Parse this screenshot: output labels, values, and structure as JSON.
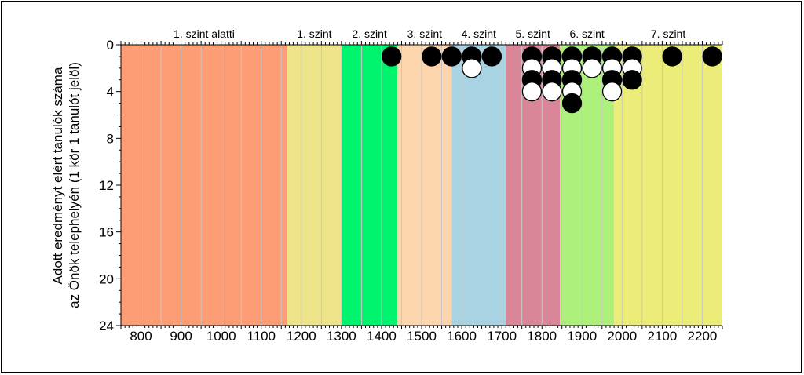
{
  "chart_data": {
    "type": "scatter",
    "ylabel_lines": [
      "Adott eredményt elért tanulók száma",
      "az Önök telephelyén (1 kör 1 tanulót jelöl)"
    ],
    "xlim": [
      750,
      2250
    ],
    "ylim": [
      0,
      24
    ],
    "y_inverted": true,
    "x_ticks": [
      800,
      900,
      1000,
      1100,
      1200,
      1300,
      1400,
      1500,
      1600,
      1700,
      1800,
      1900,
      2000,
      2100,
      2200
    ],
    "y_ticks": [
      0,
      4,
      8,
      12,
      16,
      20,
      24
    ],
    "vertical_gridlines_every": 50,
    "bands": [
      {
        "label": "1. szint alatti",
        "from": 750,
        "to": 1165,
        "color": "#fc9d76"
      },
      {
        "label": "1. szint",
        "from": 1165,
        "to": 1300,
        "color": "#ede48a"
      },
      {
        "label": "2. szint",
        "from": 1300,
        "to": 1440,
        "color": "#00f36d"
      },
      {
        "label": "3. szint",
        "from": 1440,
        "to": 1575,
        "color": "#fed6ae"
      },
      {
        "label": "4. szint",
        "from": 1575,
        "to": 1710,
        "color": "#a8d3e2"
      },
      {
        "label": "5. szint",
        "from": 1710,
        "to": 1845,
        "color": "#d98798"
      },
      {
        "label": "6. szint",
        "from": 1845,
        "to": 1980,
        "color": "#aef17a"
      },
      {
        "label": "7. szint",
        "from": 1980,
        "to": 2250,
        "color": "#ecec79"
      }
    ],
    "points": [
      {
        "x": 1425,
        "y": 1,
        "fill": "black"
      },
      {
        "x": 1525,
        "y": 1,
        "fill": "black"
      },
      {
        "x": 1575,
        "y": 1,
        "fill": "black"
      },
      {
        "x": 1625,
        "y": 1,
        "fill": "black"
      },
      {
        "x": 1625,
        "y": 2,
        "fill": "white"
      },
      {
        "x": 1675,
        "y": 1,
        "fill": "black"
      },
      {
        "x": 1775,
        "y": 1,
        "fill": "black"
      },
      {
        "x": 1775,
        "y": 2,
        "fill": "white"
      },
      {
        "x": 1775,
        "y": 3,
        "fill": "black"
      },
      {
        "x": 1775,
        "y": 4,
        "fill": "white"
      },
      {
        "x": 1825,
        "y": 1,
        "fill": "black"
      },
      {
        "x": 1825,
        "y": 2,
        "fill": "white"
      },
      {
        "x": 1825,
        "y": 3,
        "fill": "black"
      },
      {
        "x": 1825,
        "y": 4,
        "fill": "white"
      },
      {
        "x": 1875,
        "y": 1,
        "fill": "black"
      },
      {
        "x": 1875,
        "y": 2,
        "fill": "white"
      },
      {
        "x": 1875,
        "y": 3,
        "fill": "black"
      },
      {
        "x": 1875,
        "y": 4,
        "fill": "white"
      },
      {
        "x": 1875,
        "y": 5,
        "fill": "black"
      },
      {
        "x": 1925,
        "y": 1,
        "fill": "black"
      },
      {
        "x": 1925,
        "y": 2,
        "fill": "white"
      },
      {
        "x": 1975,
        "y": 1,
        "fill": "black"
      },
      {
        "x": 1975,
        "y": 2,
        "fill": "white"
      },
      {
        "x": 1975,
        "y": 3,
        "fill": "black"
      },
      {
        "x": 1975,
        "y": 4,
        "fill": "white"
      },
      {
        "x": 2025,
        "y": 1,
        "fill": "black"
      },
      {
        "x": 2025,
        "y": 2,
        "fill": "white"
      },
      {
        "x": 2025,
        "y": 3,
        "fill": "black"
      },
      {
        "x": 2125,
        "y": 1,
        "fill": "black"
      },
      {
        "x": 2225,
        "y": 1,
        "fill": "black"
      }
    ]
  }
}
